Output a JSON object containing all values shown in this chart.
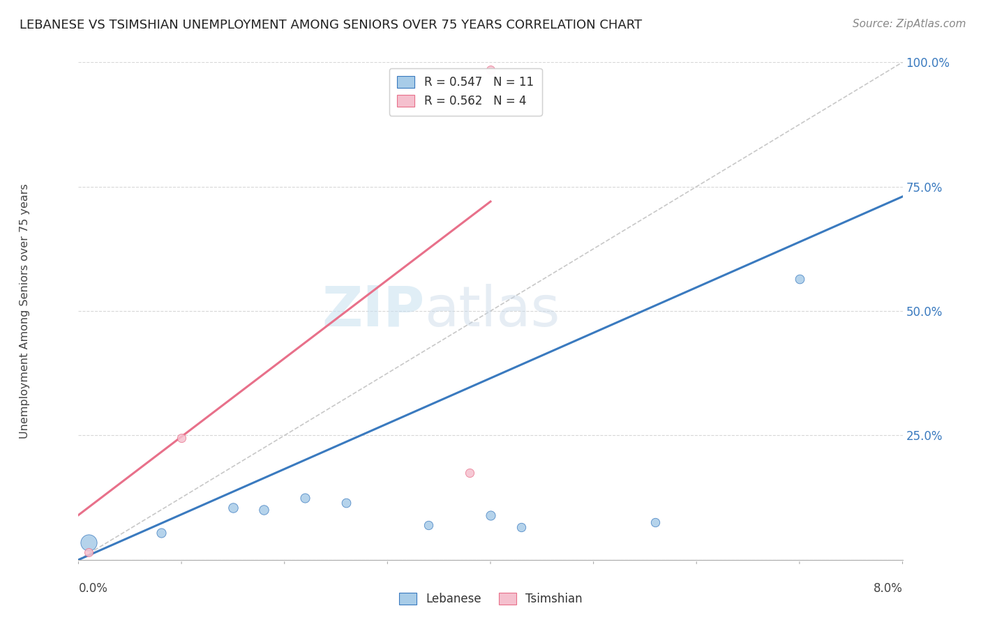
{
  "title": "LEBANESE VS TSIMSHIAN UNEMPLOYMENT AMONG SENIORS OVER 75 YEARS CORRELATION CHART",
  "source": "Source: ZipAtlas.com",
  "ylabel": "Unemployment Among Seniors over 75 years",
  "watermark_zip": "ZIP",
  "watermark_atlas": "atlas",
  "legend_blue_label": "R = 0.547   N = 11",
  "legend_pink_label": "R = 0.562   N = 4",
  "legend_bottom_blue": "Lebanese",
  "legend_bottom_pink": "Tsimshian",
  "blue_color": "#a8cce8",
  "blue_line_color": "#3a7abf",
  "pink_color": "#f5c0ce",
  "pink_line_color": "#e8708a",
  "diag_color": "#c8c8c8",
  "xlim": [
    0.0,
    0.08
  ],
  "ylim": [
    0.0,
    1.0
  ],
  "yticks": [
    0.0,
    0.25,
    0.5,
    0.75,
    1.0
  ],
  "ytick_labels": [
    "",
    "25.0%",
    "50.0%",
    "75.0%",
    "100.0%"
  ],
  "xticks": [
    0.0,
    0.01,
    0.02,
    0.03,
    0.04,
    0.05,
    0.06,
    0.07,
    0.08
  ],
  "lebanese_points": [
    [
      0.001,
      0.035,
      280
    ],
    [
      0.008,
      0.055,
      90
    ],
    [
      0.015,
      0.105,
      95
    ],
    [
      0.018,
      0.1,
      95
    ],
    [
      0.022,
      0.125,
      90
    ],
    [
      0.026,
      0.115,
      85
    ],
    [
      0.034,
      0.07,
      80
    ],
    [
      0.04,
      0.09,
      90
    ],
    [
      0.043,
      0.065,
      80
    ],
    [
      0.056,
      0.075,
      80
    ],
    [
      0.07,
      0.565,
      85
    ]
  ],
  "tsimshian_points": [
    [
      0.001,
      0.015,
      75
    ],
    [
      0.01,
      0.245,
      78
    ],
    [
      0.038,
      0.175,
      78
    ],
    [
      0.04,
      0.985,
      75
    ]
  ],
  "blue_line_x": [
    0.0,
    0.08
  ],
  "blue_line_y": [
    0.0,
    0.73
  ],
  "pink_line_x": [
    0.0,
    0.04
  ],
  "pink_line_y": [
    0.09,
    0.72
  ],
  "diag_line_x": [
    0.0,
    0.08
  ],
  "diag_line_y": [
    0.0,
    1.0
  ],
  "grid_color": "#d8d8d8",
  "grid_linestyle": "--",
  "title_fontsize": 13,
  "source_fontsize": 11,
  "ytick_fontsize": 12,
  "legend_fontsize": 12
}
